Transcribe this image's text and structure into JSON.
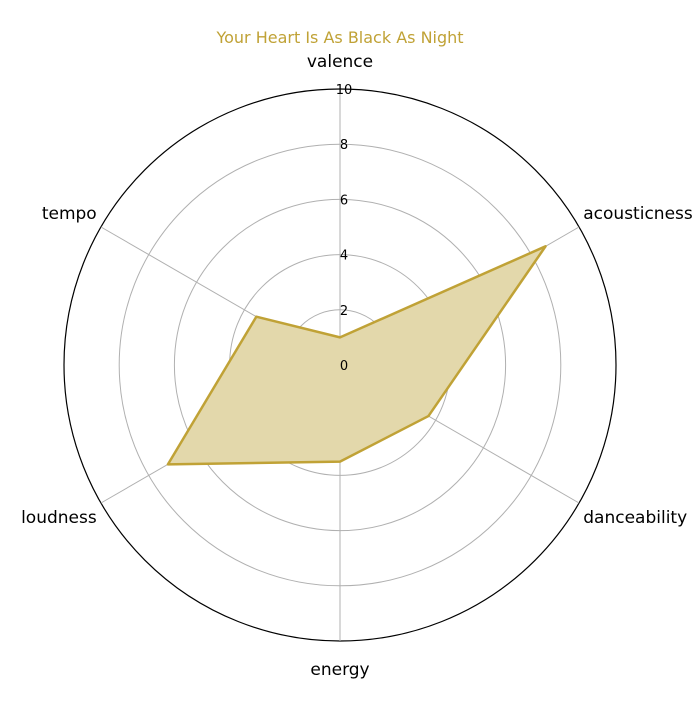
{
  "chart_data": {
    "type": "radar",
    "title": "Your Heart Is As Black As Night",
    "axes": [
      "valence",
      "acousticness",
      "danceability",
      "energy",
      "loudness",
      "tempo"
    ],
    "series": [
      {
        "values": [
          1.0,
          8.6,
          3.7,
          3.5,
          7.2,
          3.5
        ]
      }
    ],
    "rlim": [
      0,
      10
    ],
    "radial_ticks": [
      "0",
      "2",
      "4",
      "6",
      "8",
      "10"
    ],
    "grid": true,
    "colors": {
      "series_fill": "#e3d8ab",
      "series_line": "#c0a236",
      "title": "#c0a236",
      "grid": "#b0b0b0",
      "outer": "#000000"
    }
  }
}
